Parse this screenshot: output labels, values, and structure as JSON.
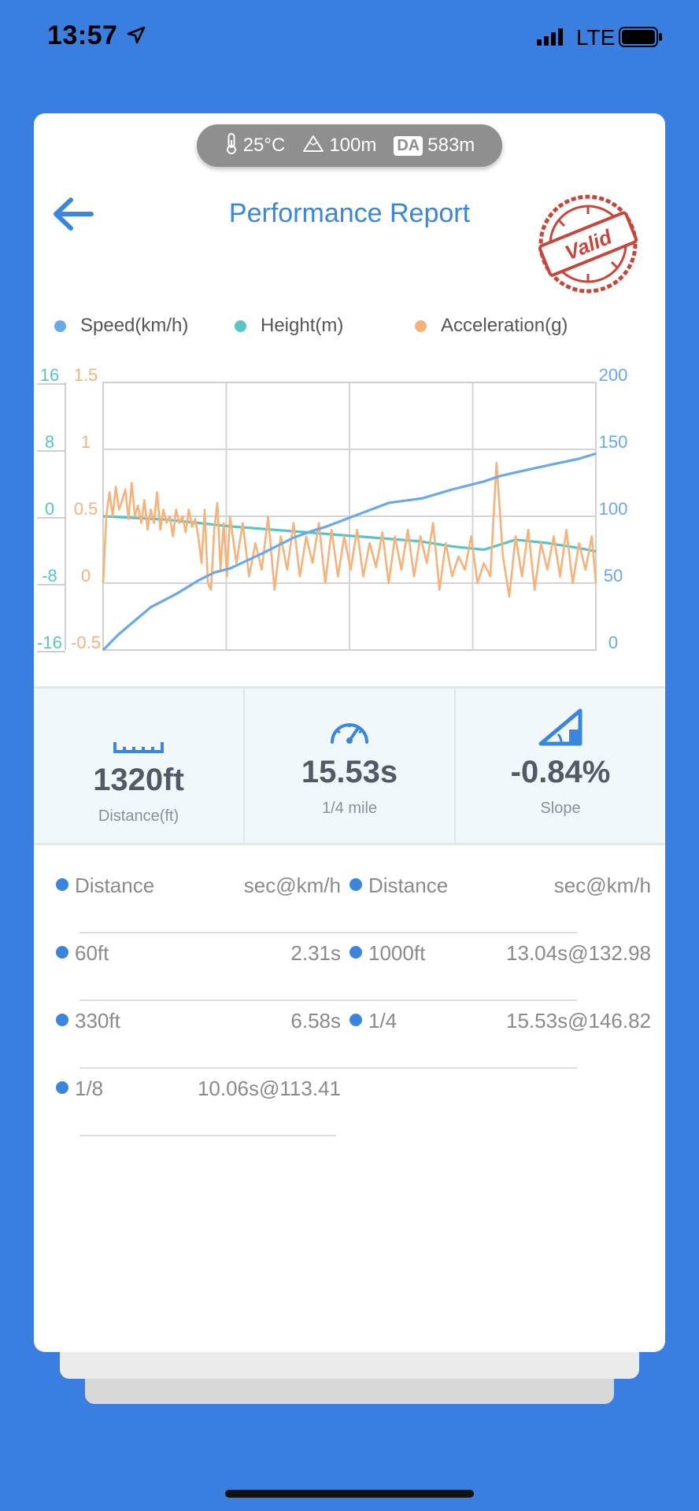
{
  "status": {
    "time": "13:57",
    "network": "LTE"
  },
  "env": {
    "temperature": "25°C",
    "altitude": "100m",
    "da_badge": "DA",
    "da_value": "583m"
  },
  "header": {
    "title": "Performance Report",
    "stamp_text": "Valid"
  },
  "colors": {
    "speed": "#6aa8e8",
    "height": "#58c4c4",
    "acceleration": "#f5b27a",
    "accent": "#3a85dd",
    "stamp": "#c6473a"
  },
  "chart_data": {
    "type": "line",
    "legend": [
      "Speed(km/h)",
      "Height(m)",
      "Acceleration(g)"
    ],
    "axes": {
      "height_ticks": [
        "16",
        "8",
        "0",
        "-8",
        "-16"
      ],
      "accel_ticks": [
        "1.5",
        "1",
        "0.5",
        "0",
        "-0.5"
      ],
      "speed_ticks": [
        "200",
        "150",
        "100",
        "50",
        "0"
      ]
    },
    "xlim": [
      0,
      15.53
    ],
    "ylim_speed": [
      0,
      200
    ],
    "ylim_height": [
      -16,
      16
    ],
    "ylim_accel": [
      -0.5,
      1.5
    ],
    "grid": true,
    "series": [
      {
        "name": "Speed(km/h)",
        "axis": "speed",
        "x": [
          0,
          0.5,
          1,
          1.5,
          2.31,
          3,
          3.5,
          4,
          5,
          6,
          6.58,
          7,
          8,
          9,
          10.06,
          11,
          12,
          12.5,
          13.04,
          14,
          15,
          15.53
        ],
        "y": [
          0,
          12,
          22,
          32,
          42,
          52,
          58,
          61,
          72,
          84,
          89,
          92,
          101,
          110,
          113.41,
          120,
          126,
          130,
          132.98,
          138,
          143,
          146.82
        ]
      },
      {
        "name": "Height(m)",
        "axis": "height",
        "x": [
          0,
          2,
          4,
          6,
          8,
          10,
          11,
          12,
          13,
          14,
          15,
          15.53
        ],
        "y": [
          0,
          -0.4,
          -1.2,
          -1.8,
          -2.4,
          -3.0,
          -3.6,
          -4.0,
          -2.8,
          -3.2,
          -3.8,
          -4.2
        ]
      },
      {
        "name": "Acceleration(g)",
        "axis": "accel",
        "x": [
          0,
          0.1,
          0.2,
          0.3,
          0.4,
          0.5,
          0.6,
          0.7,
          0.8,
          0.9,
          1.0,
          1.1,
          1.2,
          1.3,
          1.4,
          1.5,
          1.6,
          1.7,
          1.8,
          1.9,
          2.0,
          2.1,
          2.2,
          2.3,
          2.4,
          2.5,
          2.6,
          2.7,
          2.8,
          2.9,
          3.0,
          3.1,
          3.2,
          3.3,
          3.4,
          3.5,
          3.6,
          3.7,
          3.8,
          3.9,
          4.0,
          4.2,
          4.4,
          4.6,
          4.8,
          5.0,
          5.2,
          5.4,
          5.6,
          5.8,
          6.0,
          6.2,
          6.4,
          6.6,
          6.8,
          7.0,
          7.2,
          7.4,
          7.6,
          7.8,
          8.0,
          8.2,
          8.4,
          8.6,
          8.8,
          9.0,
          9.2,
          9.4,
          9.6,
          9.8,
          10.0,
          10.2,
          10.4,
          10.6,
          10.8,
          11.0,
          11.2,
          11.4,
          11.6,
          11.8,
          12.0,
          12.2,
          12.4,
          12.6,
          12.8,
          13.0,
          13.2,
          13.4,
          13.6,
          13.8,
          14.0,
          14.2,
          14.4,
          14.6,
          14.8,
          15.0,
          15.2,
          15.4,
          15.53
        ],
        "y": [
          0.0,
          0.5,
          0.68,
          0.5,
          0.72,
          0.55,
          0.62,
          0.7,
          0.48,
          0.75,
          0.5,
          0.58,
          0.45,
          0.62,
          0.4,
          0.55,
          0.45,
          0.68,
          0.4,
          0.55,
          0.45,
          0.5,
          0.35,
          0.55,
          0.45,
          0.5,
          0.38,
          0.55,
          0.42,
          0.48,
          0.35,
          0.15,
          0.55,
          0.0,
          -0.05,
          0.4,
          0.6,
          0.1,
          0.45,
          0.05,
          0.5,
          0.15,
          0.45,
          0.05,
          0.3,
          0.1,
          0.5,
          -0.05,
          0.35,
          0.1,
          0.45,
          0.05,
          0.35,
          0.15,
          0.45,
          0.0,
          0.4,
          0.05,
          0.35,
          0.1,
          0.4,
          0.05,
          0.3,
          0.12,
          0.38,
          0.0,
          0.35,
          0.1,
          0.4,
          0.05,
          0.35,
          0.15,
          0.45,
          -0.05,
          0.3,
          0.05,
          0.2,
          0.1,
          0.35,
          0.0,
          0.15,
          0.05,
          0.9,
          0.2,
          -0.1,
          0.35,
          0.05,
          0.4,
          -0.05,
          0.3,
          0.1,
          0.35,
          0.05,
          0.4,
          0.0,
          0.3,
          0.1,
          0.35,
          0.0
        ]
      }
    ]
  },
  "stats": [
    {
      "icon": "ruler-icon",
      "value": "1320ft",
      "label": "Distance(ft)"
    },
    {
      "icon": "speedometer-icon",
      "value": "15.53s",
      "label": "1/4 mile"
    },
    {
      "icon": "slope-icon",
      "value": "-0.84%",
      "label": "Slope"
    }
  ],
  "splits": {
    "header_label": "Distance",
    "header_value": "sec@km/h",
    "left": [
      {
        "label": "60ft",
        "value": "2.31s"
      },
      {
        "label": "330ft",
        "value": "6.58s"
      },
      {
        "label": "1/8",
        "value": "10.06s@113.41"
      }
    ],
    "right": [
      {
        "label": "1000ft",
        "value": "13.04s@132.98"
      },
      {
        "label": "1/4",
        "value": "15.53s@146.82"
      }
    ]
  }
}
